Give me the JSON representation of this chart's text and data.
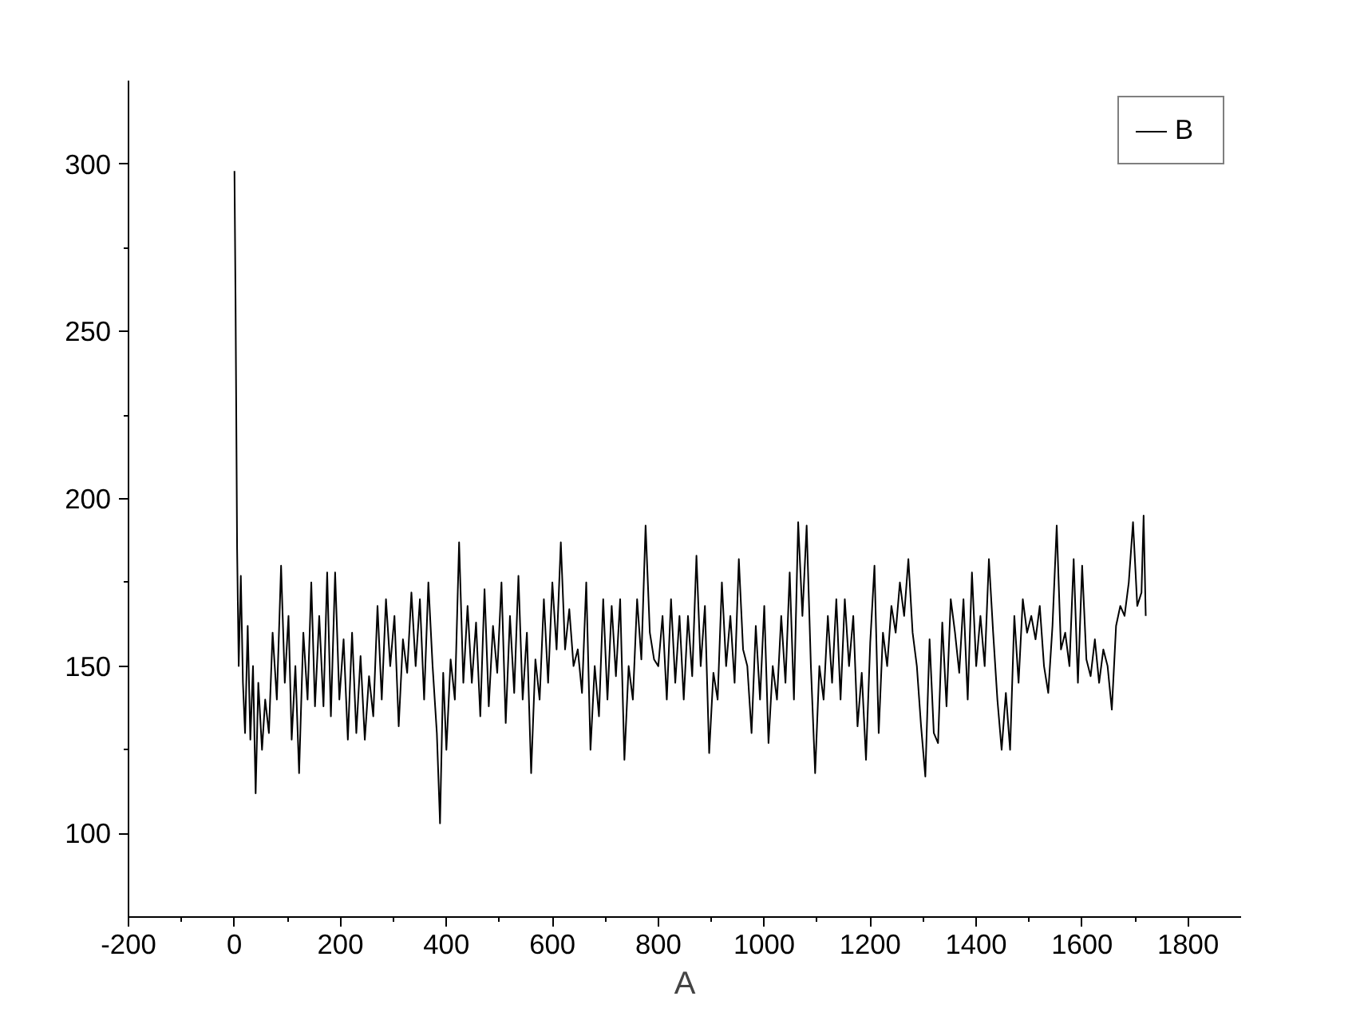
{
  "chart_data": {
    "type": "line",
    "xlabel": "A",
    "xlim": [
      -200,
      1900
    ],
    "ylim": [
      75,
      325
    ],
    "xticks": [
      -200,
      0,
      200,
      400,
      600,
      800,
      1000,
      1200,
      1400,
      1600,
      1800
    ],
    "yticks": [
      100,
      150,
      200,
      250,
      300
    ],
    "grid": false,
    "legend": "top right",
    "marker": "none",
    "line_style": "solid",
    "series": [
      {
        "name": "B",
        "color": "#000000",
        "x": [
          0,
          2,
          5,
          8,
          12,
          16,
          20,
          25,
          30,
          35,
          40,
          45,
          52,
          58,
          65,
          72,
          80,
          88,
          95,
          102,
          108,
          115,
          122,
          130,
          138,
          145,
          152,
          160,
          168,
          175,
          182,
          190,
          198,
          206,
          214,
          222,
          230,
          238,
          246,
          254,
          262,
          270,
          278,
          286,
          294,
          302,
          310,
          318,
          326,
          334,
          342,
          350,
          358,
          366,
          374,
          382,
          388,
          394,
          400,
          408,
          416,
          424,
          432,
          440,
          448,
          456,
          464,
          472,
          480,
          488,
          496,
          504,
          512,
          520,
          528,
          536,
          544,
          552,
          560,
          568,
          576,
          584,
          592,
          600,
          608,
          616,
          624,
          632,
          640,
          648,
          656,
          664,
          672,
          680,
          688,
          696,
          704,
          712,
          720,
          728,
          736,
          744,
          752,
          760,
          768,
          776,
          784,
          792,
          800,
          808,
          816,
          824,
          832,
          840,
          848,
          856,
          864,
          872,
          880,
          888,
          896,
          904,
          912,
          920,
          928,
          936,
          944,
          952,
          960,
          968,
          976,
          984,
          992,
          1000,
          1008,
          1016,
          1024,
          1032,
          1040,
          1048,
          1056,
          1064,
          1072,
          1080,
          1088,
          1096,
          1104,
          1112,
          1120,
          1128,
          1136,
          1144,
          1152,
          1160,
          1168,
          1176,
          1184,
          1192,
          1200,
          1208,
          1216,
          1224,
          1232,
          1240,
          1248,
          1256,
          1264,
          1272,
          1280,
          1288,
          1296,
          1304,
          1312,
          1320,
          1328,
          1336,
          1344,
          1352,
          1360,
          1368,
          1376,
          1384,
          1392,
          1400,
          1408,
          1416,
          1424,
          1432,
          1440,
          1448,
          1456,
          1464,
          1472,
          1480,
          1488,
          1496,
          1504,
          1512,
          1520,
          1528,
          1536,
          1544,
          1552,
          1560,
          1568,
          1576,
          1584,
          1592,
          1600,
          1608,
          1616,
          1624,
          1632,
          1640,
          1648,
          1656,
          1664,
          1672,
          1680,
          1688,
          1696,
          1704,
          1712,
          1716,
          1720
        ],
        "values": [
          298,
          260,
          185,
          150,
          177,
          145,
          130,
          162,
          128,
          150,
          112,
          145,
          125,
          140,
          130,
          160,
          140,
          180,
          145,
          165,
          128,
          150,
          118,
          160,
          140,
          175,
          138,
          165,
          138,
          178,
          135,
          178,
          140,
          158,
          128,
          160,
          130,
          153,
          128,
          147,
          135,
          168,
          140,
          170,
          150,
          165,
          132,
          158,
          148,
          172,
          150,
          170,
          140,
          175,
          150,
          130,
          103,
          148,
          125,
          152,
          140,
          187,
          145,
          168,
          145,
          163,
          135,
          173,
          138,
          162,
          148,
          175,
          133,
          165,
          142,
          177,
          140,
          160,
          118,
          152,
          140,
          170,
          145,
          175,
          155,
          187,
          155,
          167,
          150,
          155,
          142,
          175,
          125,
          150,
          135,
          170,
          140,
          168,
          147,
          170,
          122,
          150,
          140,
          170,
          152,
          192,
          160,
          152,
          150,
          165,
          140,
          170,
          145,
          165,
          140,
          165,
          147,
          183,
          150,
          168,
          124,
          148,
          140,
          175,
          150,
          165,
          145,
          182,
          155,
          150,
          130,
          162,
          140,
          168,
          127,
          150,
          140,
          165,
          145,
          178,
          140,
          193,
          165,
          192,
          150,
          118,
          150,
          140,
          165,
          145,
          170,
          140,
          170,
          150,
          165,
          132,
          148,
          122,
          157,
          180,
          130,
          160,
          150,
          168,
          160,
          175,
          165,
          182,
          160,
          150,
          132,
          117,
          158,
          130,
          127,
          163,
          138,
          170,
          160,
          148,
          170,
          140,
          178,
          150,
          165,
          150,
          182,
          160,
          140,
          125,
          142,
          125,
          165,
          145,
          170,
          160,
          165,
          158,
          168,
          150,
          142,
          162,
          192,
          155,
          160,
          150,
          182,
          145,
          180,
          152,
          147,
          158,
          145,
          155,
          150,
          137,
          162,
          168,
          165,
          175,
          193,
          168,
          172,
          195,
          165
        ]
      }
    ]
  }
}
